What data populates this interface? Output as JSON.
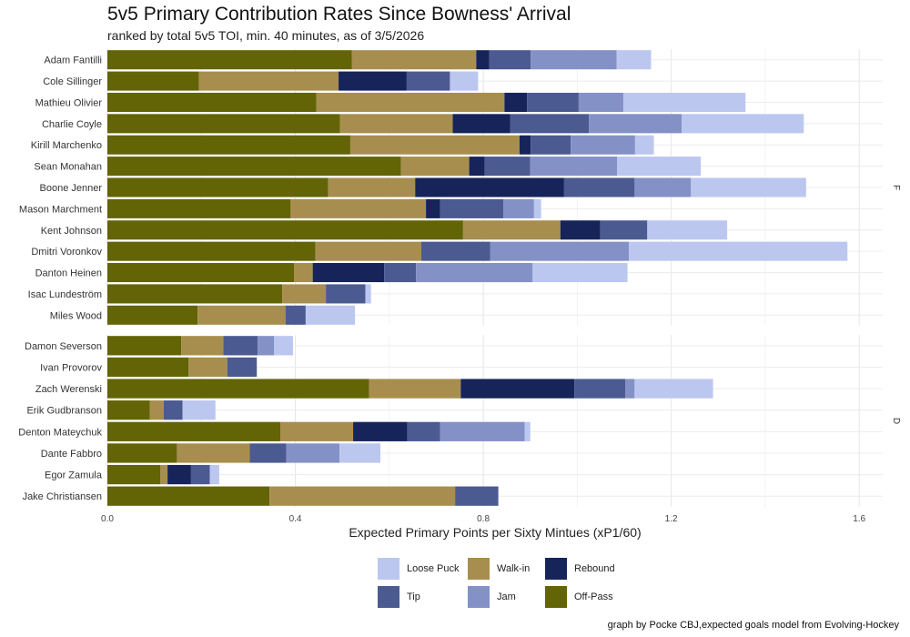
{
  "title": "5v5 Primary Contribution Rates Since Bowness' Arrival",
  "subtitle": "ranked by total 5v5 TOI, min. 40 minutes, as of 3/5/2026",
  "caption": "graph by Pocke CBJ,expected goals model from Evolving-Hockey",
  "chart_data": {
    "type": "bar",
    "orientation": "horizontal",
    "stacked": true,
    "xlabel": "Expected Primary Points per Sixty Mintues (xP1/60)",
    "xlim": [
      0,
      1.65
    ],
    "xticks": [
      0.0,
      0.4,
      0.8,
      1.2,
      1.6
    ],
    "xtick_labels": [
      "0.0",
      "0.4",
      "0.8",
      "1.2",
      "1.6"
    ],
    "grid": true,
    "legend_position": "bottom",
    "stack_order": [
      "Off-Pass",
      "Walk-in",
      "Rebound",
      "Tip",
      "Jam",
      "Loose Puck"
    ],
    "legend": [
      {
        "name": "Loose Puck",
        "color": "#bcc7f0"
      },
      {
        "name": "Tip",
        "color": "#4b5a91"
      },
      {
        "name": "Walk-in",
        "color": "#a88e4e"
      },
      {
        "name": "Jam",
        "color": "#8391c6"
      },
      {
        "name": "Rebound",
        "color": "#16245a"
      },
      {
        "name": "Off-Pass",
        "color": "#636405"
      }
    ],
    "facets": [
      {
        "label": "F",
        "players": [
          "Adam Fantilli",
          "Cole Sillinger",
          "Mathieu Olivier",
          "Charlie Coyle",
          "Kirill Marchenko",
          "Sean Monahan",
          "Boone Jenner",
          "Mason Marchment",
          "Kent Johnson",
          "Dmitri Voronkov",
          "Danton Heinen",
          "Isac Lundeström",
          "Miles Wood"
        ],
        "series": [
          {
            "name": "Off-Pass",
            "values": [
              0.52,
              0.195,
              0.445,
              0.495,
              0.517,
              0.625,
              0.47,
              0.39,
              0.757,
              0.443,
              0.397,
              0.372,
              0.192
            ]
          },
          {
            "name": "Walk-in",
            "values": [
              0.265,
              0.297,
              0.4,
              0.24,
              0.36,
              0.145,
              0.185,
              0.288,
              0.207,
              0.225,
              0.04,
              0.093,
              0.187
            ]
          },
          {
            "name": "Rebound",
            "values": [
              0.028,
              0.145,
              0.048,
              0.122,
              0.024,
              0.033,
              0.317,
              0.03,
              0.085,
              0.0,
              0.152,
              0.0,
              0.0
            ]
          },
          {
            "name": "Tip",
            "values": [
              0.088,
              0.092,
              0.11,
              0.168,
              0.085,
              0.097,
              0.15,
              0.135,
              0.1,
              0.147,
              0.068,
              0.084,
              0.043
            ]
          },
          {
            "name": "Jam",
            "values": [
              0.183,
              0.0,
              0.095,
              0.197,
              0.137,
              0.185,
              0.12,
              0.065,
              0.0,
              0.295,
              0.248,
              0.0,
              0.0
            ]
          },
          {
            "name": "Loose Puck",
            "values": [
              0.073,
              0.06,
              0.26,
              0.26,
              0.04,
              0.178,
              0.245,
              0.015,
              0.17,
              0.465,
              0.202,
              0.012,
              0.105
            ]
          }
        ]
      },
      {
        "label": "D",
        "players": [
          "Damon Severson",
          "Ivan Provorov",
          "Zach Werenski",
          "Erik Gudbranson",
          "Denton Mateychuk",
          "Dante Fabbro",
          "Egor Zamula",
          "Jake Christiansen"
        ],
        "series": [
          {
            "name": "Off-Pass",
            "values": [
              0.157,
              0.173,
              0.557,
              0.09,
              0.368,
              0.148,
              0.113,
              0.345
            ]
          },
          {
            "name": "Walk-in",
            "values": [
              0.09,
              0.082,
              0.195,
              0.03,
              0.155,
              0.155,
              0.015,
              0.395
            ]
          },
          {
            "name": "Rebound",
            "values": [
              0.0,
              0.0,
              0.242,
              0.0,
              0.115,
              0.0,
              0.05,
              0.0
            ]
          },
          {
            "name": "Tip",
            "values": [
              0.073,
              0.063,
              0.108,
              0.04,
              0.07,
              0.078,
              0.04,
              0.092
            ]
          },
          {
            "name": "Jam",
            "values": [
              0.035,
              0.0,
              0.02,
              0.0,
              0.18,
              0.113,
              0.0,
              0.0
            ]
          },
          {
            "name": "Loose Puck",
            "values": [
              0.04,
              0.0,
              0.167,
              0.07,
              0.012,
              0.087,
              0.02,
              0.0
            ]
          }
        ]
      }
    ]
  }
}
